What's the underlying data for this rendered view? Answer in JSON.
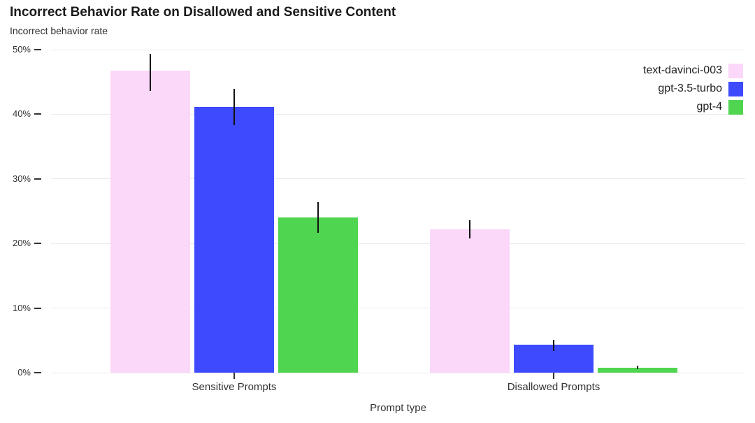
{
  "chart_data": {
    "type": "bar",
    "title": "Incorrect Behavior Rate on Disallowed and Sensitive Content",
    "ylabel": "Incorrect behavior rate",
    "xlabel": "Prompt type",
    "categories": [
      "Sensitive Prompts",
      "Disallowed Prompts"
    ],
    "y_tick_labels": [
      "0%",
      "10%",
      "20%",
      "30%",
      "40%",
      "50%"
    ],
    "y_tick_values": [
      0,
      10,
      20,
      30,
      40,
      50
    ],
    "ylim": [
      0,
      50
    ],
    "grid": true,
    "legend_position": "top-right",
    "value_unit": "percent",
    "series": [
      {
        "name": "text-davinci-003",
        "color": "#FBD7FA",
        "values": [
          46.7,
          22.2
        ],
        "error_low": [
          43.6,
          20.8
        ],
        "error_high": [
          49.4,
          23.6
        ]
      },
      {
        "name": "gpt-3.5-turbo",
        "color": "#3E4AFD",
        "values": [
          41.1,
          4.3
        ],
        "error_low": [
          38.3,
          3.4
        ],
        "error_high": [
          43.9,
          5.1
        ]
      },
      {
        "name": "gpt-4",
        "color": "#50D550",
        "values": [
          24.0,
          0.8
        ],
        "error_low": [
          21.6,
          0.5
        ],
        "error_high": [
          26.4,
          1.1
        ]
      }
    ],
    "error_bar_color": "#111111",
    "gridline_color": "#EBEBEB",
    "axis_text_color": "#333333"
  }
}
